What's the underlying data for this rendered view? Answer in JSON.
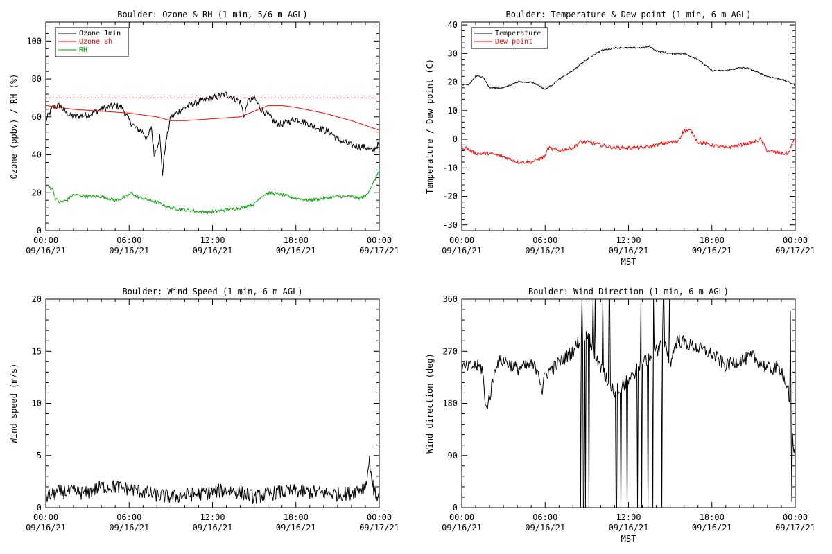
{
  "chart_data": [
    {
      "type": "line",
      "title": "Boulder: Ozone & RH (1 min, 5/6 m AGL)",
      "xlabel": "",
      "ylabel": "Ozone (ppbv) / RH (%)",
      "xlim": [
        "00:00 09/16/21",
        "00:00 09/17/21"
      ],
      "ylim": [
        0,
        110
      ],
      "x_ticks": [
        [
          "00:00",
          "09/16/21"
        ],
        [
          "06:00",
          "09/16/21"
        ],
        [
          "12:00",
          "09/16/21"
        ],
        [
          "18:00",
          "09/16/21"
        ],
        [
          "00:00",
          "09/17/21"
        ]
      ],
      "y_ticks": [
        "0",
        "20",
        "40",
        "60",
        "80",
        "100"
      ],
      "y_tick_values": [
        0,
        20,
        40,
        60,
        80,
        100
      ],
      "legend": "top-left",
      "reference_line": {
        "y": 70,
        "color": "#ff0000",
        "style": "dotted"
      },
      "series": [
        {
          "name": "Ozone 1min",
          "color": "#000000",
          "jitter": 1.8,
          "x": [
            0,
            0.5,
            1,
            1.5,
            2,
            3,
            4,
            5,
            5.5,
            6,
            6.5,
            7,
            7.3,
            7.6,
            7.8,
            8,
            8.2,
            8.4,
            8.6,
            9,
            10,
            11,
            12,
            13,
            13.5,
            14,
            14.3,
            14.5,
            15,
            15.5,
            16,
            16.5,
            17,
            18,
            19,
            20,
            20.5,
            21,
            22,
            23,
            23.5,
            24
          ],
          "y": [
            58,
            65,
            66,
            62,
            60,
            61,
            64,
            66,
            65,
            58,
            54,
            52,
            48,
            55,
            40,
            44,
            50,
            30,
            45,
            60,
            65,
            68,
            70,
            72,
            70,
            68,
            60,
            68,
            70,
            64,
            61,
            57,
            56,
            59,
            56,
            53,
            52,
            48,
            45,
            44,
            42,
            46
          ]
        },
        {
          "name": "Ozone 8h",
          "color": "#ff0000",
          "jitter": 0,
          "x": [
            0,
            2,
            4,
            6,
            8,
            9,
            10,
            12,
            14,
            15,
            16,
            17,
            18,
            20,
            22,
            24
          ],
          "y": [
            66,
            64,
            63,
            62,
            60,
            58,
            58,
            59,
            60,
            63,
            66,
            66,
            65,
            62,
            58,
            53
          ]
        },
        {
          "name": "RH",
          "color": "#00a000",
          "jitter": 0.8,
          "x": [
            0,
            0.5,
            0.7,
            1,
            1.5,
            2,
            3,
            4,
            5,
            5.5,
            6,
            6.2,
            6.5,
            7,
            7.5,
            8,
            9,
            10,
            11,
            12,
            13,
            14,
            15,
            15.5,
            16,
            17,
            18,
            19,
            20,
            21,
            22,
            22.5,
            23,
            23.5,
            24
          ],
          "y": [
            24,
            22,
            17,
            15,
            16,
            19,
            18,
            18,
            16,
            17,
            19,
            20,
            18,
            17,
            16,
            15,
            12,
            11,
            10,
            10,
            11,
            12,
            14,
            18,
            20,
            19,
            17,
            16,
            17,
            18,
            18,
            17,
            18,
            24,
            32
          ]
        }
      ]
    },
    {
      "type": "line",
      "title": "Boulder: Temperature & Dew point (1 min, 6 m AGL)",
      "xlabel": "MST",
      "ylabel": "Temperature / Dew point (C)",
      "xlim": [
        "00:00 09/16/21",
        "00:00 09/17/21"
      ],
      "ylim": [
        -32,
        41
      ],
      "x_ticks": [
        [
          "00:00",
          "09/16/21"
        ],
        [
          "06:00",
          "09/16/21"
        ],
        [
          "12:00",
          "09/16/21"
        ],
        [
          "18:00",
          "09/16/21"
        ],
        [
          "00:00",
          "09/17/21"
        ]
      ],
      "y_ticks": [
        "-30",
        "-20",
        "-10",
        "0",
        "10",
        "20",
        "30",
        "40"
      ],
      "y_tick_values": [
        -30,
        -20,
        -10,
        0,
        10,
        20,
        30,
        40
      ],
      "legend": "top-left",
      "series": [
        {
          "name": "Temperature",
          "color": "#000000",
          "jitter": 0.25,
          "x": [
            0,
            0.5,
            1,
            1.5,
            2,
            3,
            4,
            5,
            5.5,
            6,
            6.5,
            7,
            8,
            9,
            10,
            11,
            12,
            13,
            13.5,
            14,
            15,
            16,
            17,
            18,
            19,
            20,
            20.5,
            21,
            22,
            23,
            24
          ],
          "y": [
            19,
            19,
            22,
            22,
            18,
            18,
            20,
            20,
            19,
            17.5,
            19,
            21,
            24,
            28,
            31,
            32,
            32,
            32,
            32.5,
            31,
            30,
            30,
            28,
            24,
            24,
            25,
            25,
            24,
            22,
            21,
            19
          ]
        },
        {
          "name": "Dew point",
          "color": "#ff0000",
          "jitter": 0.6,
          "x": [
            0,
            0.3,
            1,
            2,
            3,
            4,
            5,
            6,
            6.2,
            7,
            8,
            8.5,
            9,
            10,
            11,
            12,
            13,
            14,
            15,
            15.5,
            16,
            16.5,
            17,
            18,
            19,
            20,
            21,
            21.5,
            22,
            23,
            23.5,
            24
          ],
          "y": [
            -3,
            -3,
            -5,
            -5,
            -6,
            -8,
            -8,
            -6,
            -3,
            -4,
            -3,
            -1,
            -1,
            -2,
            -3,
            -3,
            -3,
            -2,
            -1,
            -1,
            3,
            3,
            -1,
            -2,
            -3,
            -2,
            -1,
            0,
            -4,
            -5,
            -5,
            1
          ]
        }
      ]
    },
    {
      "type": "line",
      "title": "Boulder: Wind Speed (1 min, 6 m AGL)",
      "xlabel": "",
      "ylabel": "Wind speed (m/s)",
      "xlim": [
        "00:00 09/16/21",
        "00:00 09/17/21"
      ],
      "ylim": [
        0,
        20
      ],
      "x_ticks": [
        [
          "00:00",
          "09/16/21"
        ],
        [
          "06:00",
          "09/16/21"
        ],
        [
          "12:00",
          "09/16/21"
        ],
        [
          "18:00",
          "09/16/21"
        ],
        [
          "00:00",
          "09/17/21"
        ]
      ],
      "y_ticks": [
        "0",
        "5",
        "10",
        "15",
        "20"
      ],
      "y_tick_values": [
        0,
        5,
        10,
        15,
        20
      ],
      "legend": "none",
      "series": [
        {
          "name": "",
          "color": "#000000",
          "jitter": 0.7,
          "x": [
            0,
            1,
            2,
            3,
            4,
            5,
            6,
            7,
            8,
            9,
            10,
            11,
            12,
            13,
            14,
            15,
            16,
            17,
            18,
            19,
            20,
            21,
            22,
            22.5,
            23,
            23.3,
            23.6,
            24
          ],
          "y": [
            1,
            1.5,
            1.5,
            1.4,
            2,
            2,
            1.8,
            1.5,
            1.2,
            1,
            1.2,
            1.3,
            1.5,
            1.7,
            1.5,
            1,
            1.3,
            1.5,
            1.6,
            1.5,
            1.4,
            1.3,
            1.4,
            1.8,
            2,
            4.5,
            1.5,
            1
          ]
        }
      ]
    },
    {
      "type": "line",
      "title": "Boulder: Wind Direction (1 min, 6 m AGL)",
      "xlabel": "MST",
      "ylabel": "Wind direction (deg)",
      "xlim": [
        "00:00 09/16/21",
        "00:00 09/17/21"
      ],
      "ylim": [
        0,
        360
      ],
      "x_ticks": [
        [
          "00:00",
          "09/16/21"
        ],
        [
          "06:00",
          "09/16/21"
        ],
        [
          "12:00",
          "09/16/21"
        ],
        [
          "18:00",
          "09/16/21"
        ],
        [
          "00:00",
          "09/17/21"
        ]
      ],
      "y_ticks": [
        "0",
        "90",
        "180",
        "270",
        "360"
      ],
      "y_tick_values": [
        0,
        90,
        180,
        270,
        360
      ],
      "legend": "none",
      "series": [
        {
          "name": "",
          "color": "#000000",
          "jitter": 12,
          "x": [
            0,
            1,
            1.5,
            1.7,
            2,
            2.5,
            3,
            4,
            5,
            5.5,
            5.8,
            6,
            6.5,
            7,
            7.5,
            8,
            8.5,
            9,
            10,
            11,
            12,
            13,
            14,
            14.5,
            15,
            15.5,
            16,
            17,
            18,
            19,
            20,
            21,
            22,
            23,
            23.5,
            24
          ],
          "y": [
            240,
            245,
            240,
            170,
            190,
            250,
            255,
            240,
            245,
            240,
            200,
            230,
            240,
            250,
            260,
            270,
            290,
            300,
            240,
            200,
            220,
            250,
            270,
            290,
            250,
            290,
            285,
            275,
            265,
            245,
            255,
            260,
            240,
            240,
            200,
            80
          ]
        }
      ]
    }
  ]
}
